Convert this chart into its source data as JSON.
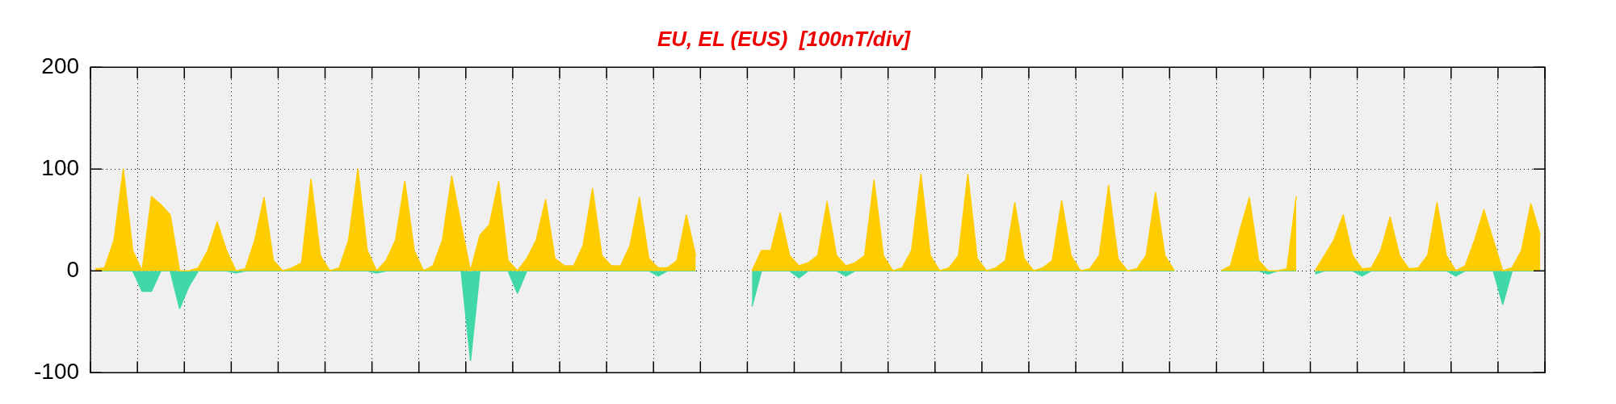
{
  "chart_data": {
    "type": "area",
    "title": "EU, EL (EUS)  [100nT/div]",
    "categories": [
      null,
      null,
      null,
      null,
      null,
      null,
      null,
      null,
      null,
      null,
      null,
      null,
      null,
      null,
      null,
      null,
      null,
      null,
      null,
      null,
      null,
      null,
      null,
      null,
      null,
      null,
      null,
      null,
      null,
      null,
      null,
      null,
      null,
      null,
      null,
      null,
      null,
      null,
      null,
      null,
      null,
      null,
      null,
      null,
      null,
      null,
      null,
      null,
      null,
      null,
      null,
      null,
      null,
      null,
      null,
      null,
      null,
      null,
      null,
      null,
      null,
      null,
      null,
      null,
      null,
      null,
      null,
      null,
      null,
      null,
      null,
      null,
      null,
      null,
      null,
      null,
      null,
      null,
      null,
      null,
      null,
      null,
      null,
      null,
      null,
      null,
      null,
      null,
      null,
      null,
      null,
      null,
      null,
      null,
      null,
      null,
      null,
      null,
      null,
      null,
      null,
      null,
      null,
      null,
      null,
      null,
      null,
      null,
      null,
      null,
      null,
      null,
      null,
      null,
      null,
      null,
      null,
      null,
      null,
      null,
      null,
      null,
      null,
      null,
      null,
      null,
      null,
      null,
      null,
      null,
      null,
      null,
      null,
      null,
      null,
      null,
      null,
      null,
      null,
      null,
      null,
      null,
      null,
      null,
      null,
      null,
      null,
      null,
      null,
      null,
      null,
      null,
      null,
      null,
      null
    ],
    "ylim": [
      -100,
      200
    ],
    "yticks": [
      -100,
      0,
      100,
      200
    ],
    "tick_labels": "y",
    "grid": true,
    "legend": false,
    "marker": "none",
    "line_style": "solid",
    "series": [
      {
        "color": "#ffcc00",
        "values": [
          2,
          3,
          30,
          100,
          20,
          0,
          73,
          65,
          55,
          0,
          0,
          3,
          20,
          48,
          20,
          0,
          2,
          30,
          72,
          10,
          0,
          3,
          8,
          90,
          15,
          0,
          3,
          30,
          100,
          20,
          0,
          10,
          30,
          88,
          20,
          0,
          5,
          30,
          93,
          45,
          0,
          35,
          45,
          88,
          10,
          0,
          12,
          30,
          70,
          12,
          5,
          5,
          25,
          81,
          15,
          5,
          5,
          25,
          72,
          12,
          3,
          3,
          10,
          55,
          15,
          null,
          null,
          null,
          null,
          null,
          0,
          20,
          20,
          57,
          15,
          5,
          8,
          15,
          68,
          15,
          5,
          8,
          15,
          89,
          15,
          0,
          3,
          20,
          95,
          15,
          0,
          3,
          15,
          95,
          12,
          0,
          3,
          10,
          67,
          12,
          0,
          3,
          10,
          69,
          15,
          0,
          2,
          15,
          84,
          12,
          0,
          2,
          15,
          77,
          15,
          0,
          null,
          null,
          null,
          null,
          0,
          5,
          40,
          72,
          10,
          0,
          0,
          2,
          73,
          null,
          0,
          15,
          30,
          55,
          15,
          2,
          3,
          20,
          53,
          15,
          2,
          3,
          15,
          67,
          15,
          0,
          5,
          30,
          60,
          30,
          0,
          3,
          20,
          66,
          35
        ]
      },
      {
        "color": "#40d8a8",
        "values": [
          0,
          0,
          0,
          0,
          0,
          -20,
          -20,
          0,
          0,
          -37,
          -15,
          0,
          0,
          0,
          0,
          -2,
          0,
          0,
          0,
          0,
          0,
          0,
          0,
          0,
          0,
          0,
          0,
          0,
          0,
          0,
          -2,
          0,
          0,
          0,
          0,
          0,
          0,
          0,
          0,
          0,
          -88,
          0,
          0,
          0,
          0,
          -22,
          0,
          0,
          0,
          0,
          0,
          0,
          0,
          0,
          0,
          0,
          0,
          0,
          0,
          0,
          -5,
          0,
          0,
          0,
          0,
          null,
          null,
          null,
          null,
          null,
          -35,
          0,
          0,
          0,
          0,
          -7,
          0,
          0,
          0,
          0,
          -5,
          0,
          0,
          0,
          0,
          0,
          0,
          0,
          0,
          0,
          0,
          0,
          0,
          0,
          0,
          0,
          0,
          0,
          0,
          0,
          0,
          0,
          0,
          0,
          0,
          0,
          0,
          0,
          0,
          0,
          0,
          0,
          0,
          0,
          0,
          0,
          null,
          null,
          null,
          null,
          0,
          0,
          0,
          0,
          0,
          -3,
          0,
          0,
          0,
          null,
          -3,
          0,
          0,
          0,
          0,
          -5,
          0,
          0,
          0,
          0,
          0,
          0,
          0,
          0,
          0,
          -5,
          0,
          0,
          0,
          0,
          -33,
          0,
          0,
          0,
          0
        ]
      }
    ]
  }
}
